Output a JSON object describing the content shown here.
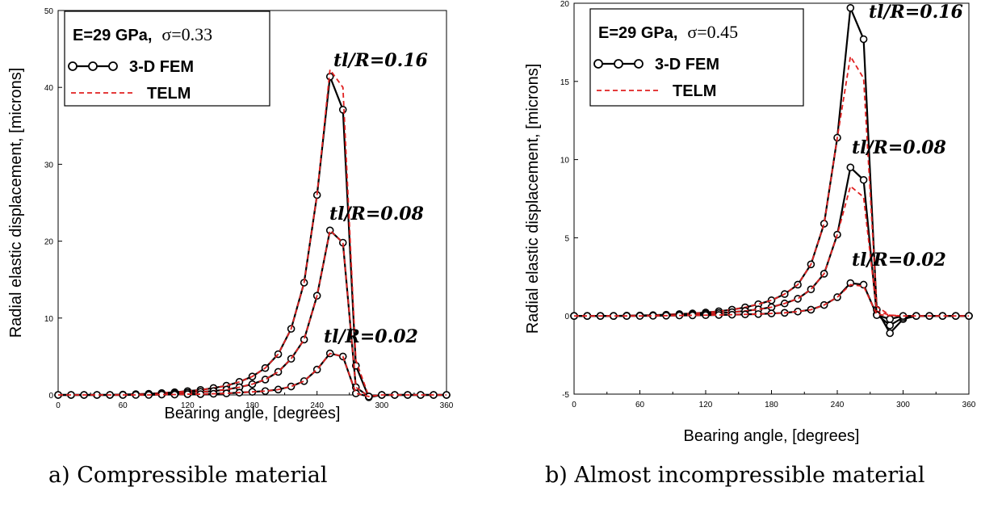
{
  "chart_data": [
    {
      "type": "line",
      "caption": "a)   Compressible material",
      "xlabel": "Bearing angle, [degrees]",
      "ylabel": "Radial elastic displacement, [microns]",
      "xlim": [
        0,
        360
      ],
      "ylim": [
        0,
        50
      ],
      "xticks": [
        "0",
        "60",
        "120",
        "180",
        "240",
        "300",
        "360"
      ],
      "yticks": [
        "0",
        "10",
        "20",
        "30",
        "40",
        "50"
      ],
      "legend": {
        "placement": "top-left",
        "material": "E=29 GPa,",
        "poisson": "σ=0.33",
        "items": [
          "3-D FEM",
          "TELM"
        ]
      },
      "x": [
        0,
        12,
        24,
        36,
        48,
        60,
        72,
        84,
        96,
        108,
        120,
        132,
        144,
        156,
        168,
        180,
        192,
        204,
        216,
        228,
        240,
        252,
        264,
        276,
        288,
        300,
        312,
        324,
        336,
        348,
        360
      ],
      "series": [
        {
          "name": "tl/R=0.16",
          "fem": [
            0,
            0,
            0,
            0,
            0,
            0.05,
            0.1,
            0.15,
            0.25,
            0.35,
            0.5,
            0.65,
            0.9,
            1.2,
            1.7,
            2.4,
            3.5,
            5.3,
            8.6,
            14.6,
            26.0,
            41.4,
            37.1,
            3.8,
            -0.3,
            0,
            0,
            0,
            0,
            0,
            0
          ],
          "telm": [
            0,
            0,
            0,
            0,
            0,
            0.05,
            0.1,
            0.15,
            0.25,
            0.35,
            0.5,
            0.65,
            0.9,
            1.2,
            1.7,
            2.4,
            3.5,
            5.3,
            8.6,
            14.6,
            26.0,
            42.3,
            40.0,
            4.5,
            -0.2,
            0,
            0,
            0,
            0,
            0,
            0
          ],
          "label": "tl/R=0.16"
        },
        {
          "name": "tl/R=0.08",
          "fem": [
            0,
            0,
            0,
            0,
            0,
            0,
            0.05,
            0.1,
            0.15,
            0.2,
            0.3,
            0.4,
            0.5,
            0.7,
            1.0,
            1.4,
            2.0,
            3.0,
            4.7,
            7.2,
            12.9,
            21.4,
            19.8,
            1.0,
            -0.2,
            0,
            0,
            0,
            0,
            0,
            0
          ],
          "telm": [
            0,
            0,
            0,
            0,
            0,
            0,
            0.05,
            0.1,
            0.15,
            0.2,
            0.3,
            0.4,
            0.5,
            0.7,
            1.0,
            1.4,
            2.0,
            3.0,
            4.7,
            7.2,
            12.9,
            21.4,
            19.8,
            1.0,
            -0.2,
            0,
            0,
            0,
            0,
            0,
            0
          ],
          "label": "tl/R=0.08"
        },
        {
          "name": "tl/R=0.02",
          "fem": [
            0,
            0,
            0,
            0,
            0,
            0,
            0,
            0,
            0.05,
            0.05,
            0.1,
            0.1,
            0.15,
            0.2,
            0.3,
            0.4,
            0.5,
            0.7,
            1.1,
            1.8,
            3.3,
            5.4,
            5.0,
            0.2,
            -0.2,
            0,
            0,
            0,
            0,
            0,
            0
          ],
          "telm": [
            0,
            0,
            0,
            0,
            0,
            0,
            0,
            0,
            0.05,
            0.05,
            0.1,
            0.1,
            0.15,
            0.2,
            0.3,
            0.4,
            0.5,
            0.7,
            1.1,
            1.8,
            3.3,
            5.4,
            5.0,
            0.2,
            -0.2,
            0,
            0,
            0,
            0,
            0,
            0
          ],
          "label": "tl/R=0.02"
        }
      ]
    },
    {
      "type": "line",
      "caption": "b) Almost incompressible material",
      "xlabel": "Bearing angle, [degrees]",
      "ylabel": "Radial elastic displacement, [microns]",
      "xlim": [
        0,
        360
      ],
      "ylim": [
        -5,
        20
      ],
      "xticks": [
        "0",
        "60",
        "120",
        "180",
        "240",
        "300",
        "360"
      ],
      "yticks": [
        "-5",
        "0",
        "5",
        "10",
        "15",
        "20"
      ],
      "legend": {
        "placement": "top-left",
        "material": "E=29 GPa,",
        "poisson": "σ=0.45",
        "items": [
          "3-D FEM",
          "TELM"
        ]
      },
      "x": [
        0,
        12,
        24,
        36,
        48,
        60,
        72,
        84,
        96,
        108,
        120,
        132,
        144,
        156,
        168,
        180,
        192,
        204,
        216,
        228,
        240,
        252,
        264,
        276,
        288,
        300,
        312,
        324,
        336,
        348,
        360
      ],
      "series": [
        {
          "name": "tl/R=0.16",
          "fem": [
            0,
            0,
            0,
            0,
            0.02,
            0.03,
            0.05,
            0.08,
            0.12,
            0.16,
            0.22,
            0.3,
            0.4,
            0.55,
            0.75,
            1.0,
            1.4,
            2.0,
            3.3,
            5.9,
            11.4,
            19.7,
            17.7,
            0.4,
            -1.1,
            -0.2,
            0,
            0,
            0,
            0,
            0
          ],
          "telm": [
            0,
            0,
            0,
            0,
            0.02,
            0.03,
            0.05,
            0.08,
            0.12,
            0.16,
            0.22,
            0.3,
            0.4,
            0.55,
            0.75,
            1.0,
            1.4,
            2.0,
            3.3,
            5.9,
            11.4,
            16.6,
            15.2,
            0.6,
            0.05,
            0,
            0,
            0,
            0,
            0,
            0
          ],
          "label": "tl/R=0.16"
        },
        {
          "name": "tl/R=0.08",
          "fem": [
            0,
            0,
            0,
            0,
            0,
            0.02,
            0.03,
            0.05,
            0.07,
            0.1,
            0.14,
            0.18,
            0.24,
            0.32,
            0.42,
            0.56,
            0.8,
            1.1,
            1.7,
            2.7,
            5.2,
            9.5,
            8.7,
            0.1,
            -0.6,
            -0.1,
            0,
            0,
            0,
            0,
            0
          ],
          "telm": [
            0,
            0,
            0,
            0,
            0,
            0.02,
            0.03,
            0.05,
            0.07,
            0.1,
            0.14,
            0.18,
            0.24,
            0.32,
            0.42,
            0.56,
            0.8,
            1.1,
            1.7,
            2.7,
            5.2,
            8.3,
            7.6,
            0.3,
            0.05,
            0,
            0,
            0,
            0,
            0,
            0
          ],
          "label": "tl/R=0.08"
        },
        {
          "name": "tl/R=0.02",
          "fem": [
            0,
            0,
            0,
            0,
            0,
            0,
            0.01,
            0.02,
            0.03,
            0.04,
            0.05,
            0.06,
            0.08,
            0.1,
            0.12,
            0.16,
            0.2,
            0.28,
            0.4,
            0.7,
            1.2,
            2.1,
            2.0,
            0.05,
            -0.2,
            0,
            0,
            0,
            0,
            0,
            0
          ],
          "telm": [
            0,
            0,
            0,
            0,
            0,
            0,
            0.01,
            0.02,
            0.03,
            0.04,
            0.05,
            0.06,
            0.08,
            0.1,
            0.12,
            0.16,
            0.2,
            0.28,
            0.4,
            0.7,
            1.2,
            2.0,
            1.9,
            0.1,
            0.02,
            0,
            0,
            0,
            0,
            0,
            0
          ],
          "label": "tl/R=0.02"
        }
      ]
    }
  ],
  "colors": {
    "fem_line": "#000000",
    "telm_line": "#e02020",
    "marker_fill": "#ffffff"
  }
}
